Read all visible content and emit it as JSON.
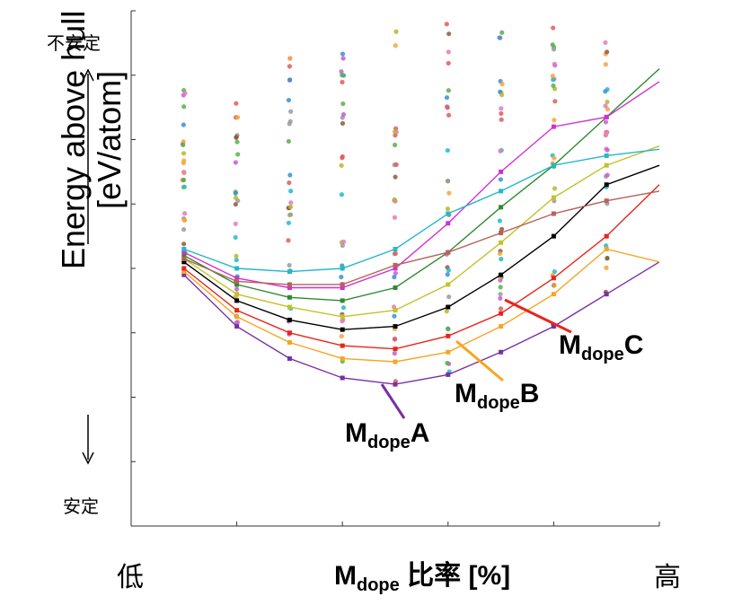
{
  "chart_data": {
    "type": "scatter",
    "title": "",
    "xlabel_main": "M",
    "xlabel_sub": "dope",
    "xlabel_tail": " 比率 [%]",
    "x_low_label": "低",
    "x_high_label": "高",
    "ylabel_line1": "Energy above hull",
    "ylabel_line2": "[eV/atom]",
    "y_top_label": "不安定",
    "y_bottom_label": "安定",
    "xlim": [
      0,
      10
    ],
    "ylim": [
      0,
      8
    ],
    "x": [
      1,
      2,
      3,
      4,
      5,
      6,
      7,
      8,
      9,
      10
    ],
    "series": [
      {
        "name": "MdopeA",
        "label_main": "M",
        "label_sub": "dope",
        "label_tail": "A",
        "color": "#7b2fa0",
        "values": [
          3.9,
          3.1,
          2.6,
          2.3,
          2.2,
          2.35,
          2.7,
          3.1,
          3.6,
          4.1
        ]
      },
      {
        "name": "MdopeB",
        "label_main": "M",
        "label_sub": "dope",
        "label_tail": "B",
        "color": "#f5a623",
        "values": [
          3.95,
          3.25,
          2.85,
          2.6,
          2.55,
          2.7,
          3.1,
          3.6,
          4.3,
          4.1
        ]
      },
      {
        "name": "MdopeC",
        "label_main": "M",
        "label_sub": "dope",
        "label_tail": "C",
        "color": "#e8251a",
        "values": [
          4.0,
          3.35,
          3.0,
          2.8,
          2.75,
          2.95,
          3.3,
          3.85,
          4.5,
          5.3
        ]
      },
      {
        "name": "",
        "color": "#000000",
        "values": [
          4.1,
          3.5,
          3.2,
          3.05,
          3.1,
          3.4,
          3.9,
          4.5,
          5.3,
          5.6
        ]
      },
      {
        "name": "",
        "color": "#c2c22a",
        "values": [
          4.15,
          3.6,
          3.4,
          3.25,
          3.35,
          3.75,
          4.4,
          5.1,
          5.6,
          5.9
        ]
      },
      {
        "name": "",
        "color": "#2e8b2e",
        "values": [
          4.2,
          3.75,
          3.55,
          3.5,
          3.7,
          4.25,
          4.95,
          5.6,
          6.35,
          7.1
        ]
      },
      {
        "name": "",
        "color": "#d22fd2",
        "values": [
          4.25,
          3.85,
          3.7,
          3.7,
          4.0,
          4.7,
          5.5,
          6.2,
          6.35,
          6.9
        ]
      },
      {
        "name": "",
        "color": "#25b8c8",
        "values": [
          4.3,
          4.0,
          3.95,
          4.0,
          4.3,
          4.85,
          5.2,
          5.6,
          5.75,
          5.85
        ]
      },
      {
        "name": "",
        "color": "#b5625a",
        "values": [
          4.15,
          3.8,
          3.75,
          3.75,
          4.05,
          4.25,
          4.55,
          4.85,
          5.05,
          5.2
        ]
      }
    ],
    "scatter_colors": [
      "#e05c5c",
      "#f7a33b",
      "#58b04a",
      "#3a8fd1",
      "#c85cd3",
      "#9a9a9a",
      "#1fbccc",
      "#b7b72a",
      "#e37bbb",
      "#8e5a3c"
    ],
    "grid": false,
    "legend": "none"
  }
}
